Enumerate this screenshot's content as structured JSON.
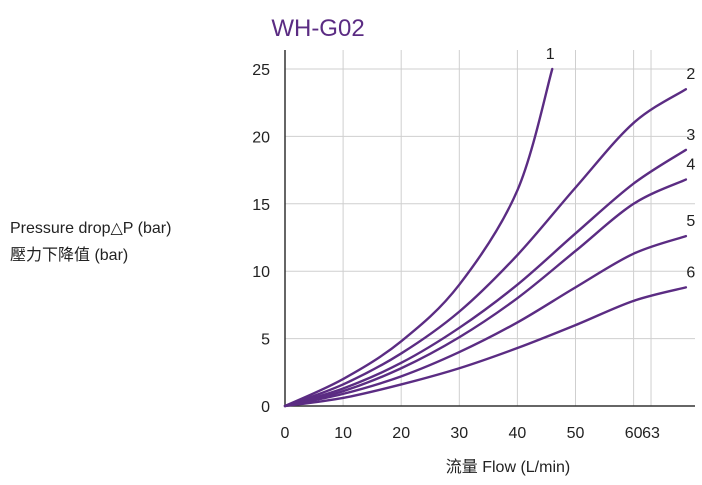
{
  "colors": {
    "accent": "#5B2C83",
    "axis": "#333333",
    "grid": "#cfcfcf",
    "text": "#222222"
  },
  "chart_data": {
    "type": "line",
    "title": "WH-G02",
    "xlabel": "流量 Flow (L/min)",
    "ylabel_line1": "Pressure drop△P (bar)",
    "ylabel_line2": "壓力下降值 (bar)",
    "xlim": [
      0,
      70
    ],
    "ylim": [
      0,
      25
    ],
    "x_ticks": [
      0,
      10,
      20,
      30,
      40,
      50,
      60,
      63
    ],
    "y_ticks": [
      0,
      5,
      10,
      15,
      20,
      25
    ],
    "grid": true,
    "series": [
      {
        "name": "1",
        "points": [
          [
            0,
            0
          ],
          [
            10,
            2
          ],
          [
            20,
            4.8
          ],
          [
            30,
            9
          ],
          [
            40,
            16
          ],
          [
            46,
            25
          ]
        ]
      },
      {
        "name": "2",
        "points": [
          [
            0,
            0
          ],
          [
            10,
            1.6
          ],
          [
            20,
            3.9
          ],
          [
            30,
            7
          ],
          [
            40,
            11.2
          ],
          [
            50,
            16.2
          ],
          [
            60,
            21
          ],
          [
            69,
            23.5
          ]
        ]
      },
      {
        "name": "3",
        "points": [
          [
            0,
            0
          ],
          [
            10,
            1.3
          ],
          [
            20,
            3.2
          ],
          [
            30,
            5.8
          ],
          [
            40,
            9
          ],
          [
            50,
            12.8
          ],
          [
            60,
            16.5
          ],
          [
            69,
            19
          ]
        ]
      },
      {
        "name": "4",
        "points": [
          [
            0,
            0
          ],
          [
            10,
            1.1
          ],
          [
            20,
            2.8
          ],
          [
            30,
            5.1
          ],
          [
            40,
            8
          ],
          [
            50,
            11.5
          ],
          [
            60,
            15
          ],
          [
            69,
            16.8
          ]
        ]
      },
      {
        "name": "5",
        "points": [
          [
            0,
            0
          ],
          [
            10,
            0.9
          ],
          [
            20,
            2.2
          ],
          [
            30,
            4
          ],
          [
            40,
            6.2
          ],
          [
            50,
            8.8
          ],
          [
            60,
            11.3
          ],
          [
            69,
            12.6
          ]
        ]
      },
      {
        "name": "6",
        "points": [
          [
            0,
            0
          ],
          [
            10,
            0.6
          ],
          [
            20,
            1.6
          ],
          [
            30,
            2.8
          ],
          [
            40,
            4.3
          ],
          [
            50,
            6
          ],
          [
            60,
            7.8
          ],
          [
            69,
            8.8
          ]
        ]
      }
    ]
  }
}
